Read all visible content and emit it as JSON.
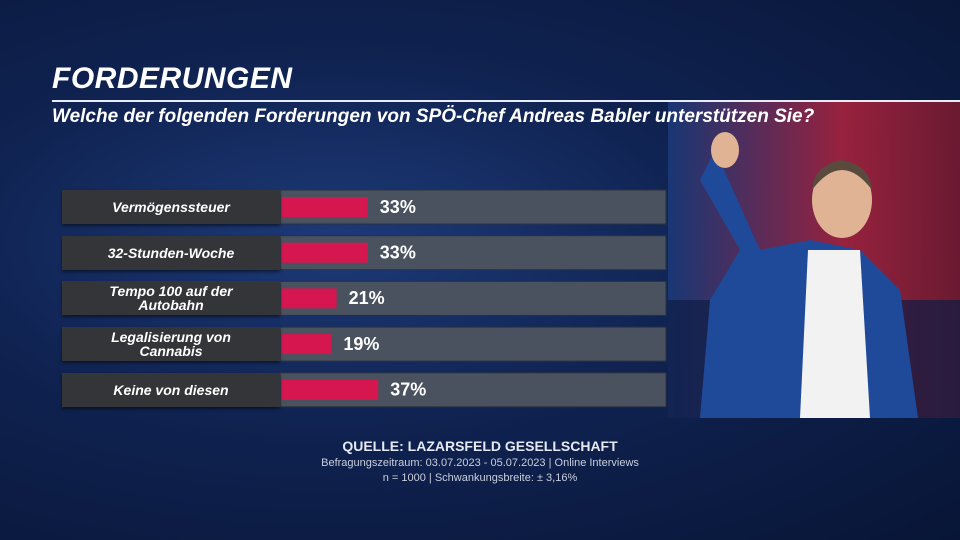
{
  "chart_data": {
    "type": "bar",
    "orientation": "horizontal",
    "title": "FORDERUNGEN",
    "subtitle": "Welche der folgenden Forderungen von SPÖ-Chef Andreas Babler unterstützen Sie?",
    "categories": [
      "Vermögenssteuer",
      "32-Stunden-Woche",
      "Tempo 100 auf der Autobahn",
      "Legalisierung von Cannabis",
      "Keine von diesen"
    ],
    "values": [
      33,
      33,
      21,
      19,
      37
    ],
    "value_labels": [
      "33%",
      "33%",
      "21%",
      "19%",
      "37%"
    ],
    "color": "#d6174f",
    "source": "QUELLE:  LAZARSFELD GESELLSCHAFT",
    "notes": [
      "Befragungszeitraum: 03.07.2023 - 05.07.2023 | Online Interviews",
      "n = 1000 | Schwankungsbreite: ± 3,16%"
    ]
  }
}
